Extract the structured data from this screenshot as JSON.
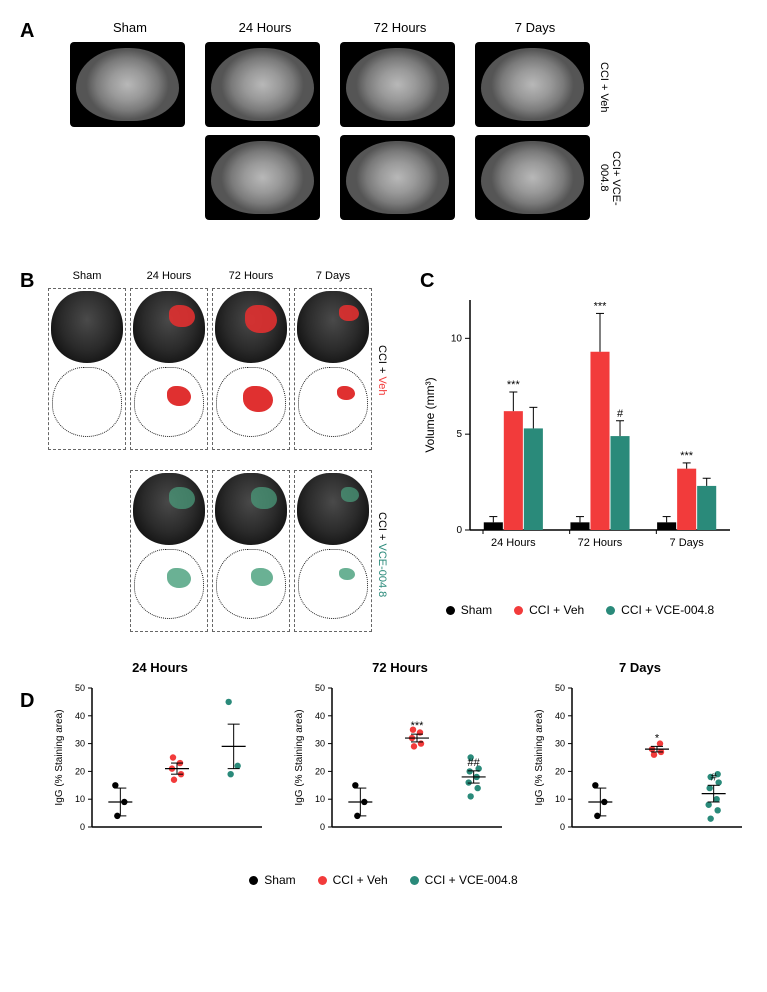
{
  "colors": {
    "sham": "#000000",
    "veh": "#f23b3b",
    "vce": "#2a8a7a",
    "axis": "#000000",
    "bg": "#ffffff",
    "errorbar": "#000000"
  },
  "fontsizes": {
    "panel_label": 20,
    "axis_label": 12,
    "tick": 10,
    "legend": 12,
    "subtitle": 13
  },
  "panelA": {
    "col_headers": [
      "Sham",
      "24 Hours",
      "72 Hours",
      "7 Days"
    ],
    "row_labels": [
      "CCI + Veh",
      "CCI+ VCE-004.8"
    ]
  },
  "panelB": {
    "col_headers": [
      "Sham",
      "24 Hours",
      "72 Hours",
      "7 Days"
    ],
    "row_labels": [
      "CCI + Veh",
      "CCI + VCE-004.8"
    ]
  },
  "panelC": {
    "type": "grouped_bar",
    "ylabel": "Volume (mm³)",
    "ylim": [
      0,
      12
    ],
    "ytick_step": 5,
    "categories": [
      "24 Hours",
      "72 Hours",
      "7 Days"
    ],
    "series": [
      {
        "name": "Sham",
        "color": "#000000",
        "values": [
          0.4,
          0.4,
          0.4
        ],
        "err": [
          0.3,
          0.3,
          0.3
        ]
      },
      {
        "name": "CCI + Veh",
        "color": "#f23b3b",
        "values": [
          6.2,
          9.3,
          3.2
        ],
        "err": [
          1.0,
          2.0,
          0.3
        ],
        "sig": [
          "***",
          "***",
          "***"
        ]
      },
      {
        "name": "CCI + VCE-004.8",
        "color": "#2a8a7a",
        "values": [
          5.3,
          4.9,
          2.3
        ],
        "err": [
          1.1,
          0.8,
          0.4
        ],
        "sig": [
          "",
          "#",
          ""
        ]
      }
    ],
    "bar_width": 0.25,
    "legend_labels": [
      "Sham",
      "CCI + Veh",
      "CCI + VCE-004.8"
    ]
  },
  "panelD": {
    "subplots": [
      {
        "title": "24 Hours",
        "ylabel": "IgG (% Staining area)",
        "ylim": [
          0,
          50
        ],
        "ytick_step": 10,
        "groups": [
          {
            "name": "Sham",
            "color": "#000000",
            "points": [
              4,
              9,
              15
            ],
            "mean": 9,
            "err": 5
          },
          {
            "name": "CCI + Veh",
            "color": "#f23b3b",
            "points": [
              17,
              19,
              21,
              23,
              25
            ],
            "mean": 21,
            "err": 2,
            "sig": ""
          },
          {
            "name": "CCI + VCE-004.8",
            "color": "#2a8a7a",
            "points": [
              19,
              22,
              45
            ],
            "mean": 29,
            "err": 8,
            "sig": ""
          }
        ]
      },
      {
        "title": "72 Hours",
        "ylabel": "IgG (% Staining area)",
        "ylim": [
          0,
          50
        ],
        "ytick_step": 10,
        "groups": [
          {
            "name": "Sham",
            "color": "#000000",
            "points": [
              4,
              9,
              15
            ],
            "mean": 9,
            "err": 5
          },
          {
            "name": "CCI + Veh",
            "color": "#f23b3b",
            "points": [
              29,
              30,
              32,
              34,
              35
            ],
            "mean": 32,
            "err": 1.4,
            "sig": "***"
          },
          {
            "name": "CCI + VCE-004.8",
            "color": "#2a8a7a",
            "points": [
              11,
              14,
              16,
              18,
              20,
              21,
              25
            ],
            "mean": 18,
            "err": 2.2,
            "sig": "##"
          }
        ]
      },
      {
        "title": "7 Days",
        "ylabel": "IgG (% Staining area)",
        "ylim": [
          0,
          50
        ],
        "ytick_step": 10,
        "groups": [
          {
            "name": "Sham",
            "color": "#000000",
            "points": [
              4,
              9,
              15
            ],
            "mean": 9,
            "err": 5
          },
          {
            "name": "CCI + Veh",
            "color": "#f23b3b",
            "points": [
              26,
              27,
              28,
              30
            ],
            "mean": 28,
            "err": 1,
            "sig": "*"
          },
          {
            "name": "CCI + VCE-004.8",
            "color": "#2a8a7a",
            "points": [
              3,
              6,
              8,
              10,
              14,
              16,
              18,
              19
            ],
            "mean": 12,
            "err": 3,
            "sig": "#"
          }
        ]
      }
    ],
    "legend_labels": [
      "Sham",
      "CCI + Veh",
      "CCI + VCE-004.8"
    ]
  }
}
